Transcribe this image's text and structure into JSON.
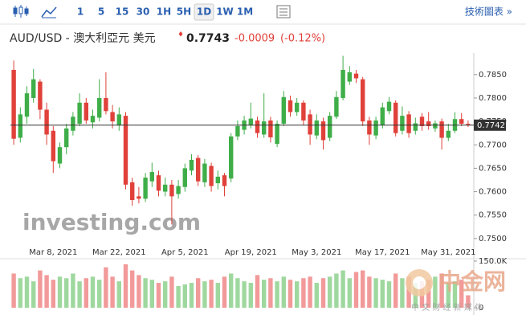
{
  "toolbar": {
    "timeframes": [
      "1",
      "5",
      "15",
      "30",
      "1H",
      "5H",
      "1D",
      "1W",
      "1M"
    ],
    "selected": "1D",
    "chart_link": "技術圖表 »"
  },
  "header": {
    "symbol": "AUD/USD - 澳大利亞元 美元",
    "marker": "♦",
    "price": 0.7743,
    "change": -0.0009,
    "change_pct": "(-0.12%)"
  },
  "watermarks": {
    "brand": "investing.com",
    "logo": "中金网",
    "logo_tagline": "中 文 财 经 新 媒 体"
  },
  "chart_data": [
    {
      "type": "candlestick",
      "categories": [
        null,
        null,
        null,
        null,
        null,
        null,
        "Mar 8, 2021",
        null,
        null,
        null,
        null,
        null,
        null,
        null,
        null,
        null,
        "Mar 22, 2021",
        null,
        null,
        null,
        null,
        null,
        null,
        null,
        null,
        null,
        "Apr 5, 2021",
        null,
        null,
        null,
        null,
        null,
        null,
        null,
        null,
        null,
        "Apr 19, 2021",
        null,
        null,
        null,
        null,
        null,
        null,
        null,
        null,
        null,
        "May 3, 2021",
        null,
        null,
        null,
        null,
        null,
        null,
        null,
        null,
        null,
        "May 17, 2021",
        null,
        null,
        null,
        null,
        null,
        null,
        null,
        null,
        null,
        "May 31, 2021",
        null,
        null,
        null
      ],
      "open": [
        0.786,
        0.7715,
        0.776,
        0.78,
        0.7835,
        0.7775,
        0.773,
        0.766,
        0.7695,
        0.773,
        0.7745,
        0.779,
        0.7748,
        0.7758,
        0.78,
        0.777,
        0.7742,
        0.7762,
        0.762,
        0.759,
        0.7585,
        0.7622,
        0.7635,
        0.76,
        0.7615,
        0.7595,
        0.761,
        0.7645,
        0.7672,
        0.762,
        0.7655,
        0.7618,
        0.7635,
        0.7628,
        0.7718,
        0.7732,
        0.7742,
        0.7752,
        0.7722,
        0.7752,
        0.7702,
        0.7745,
        0.7795,
        0.777,
        0.779,
        0.7765,
        0.772,
        0.775,
        0.7715,
        0.776,
        0.78,
        0.7835,
        0.7852,
        0.784,
        0.7752,
        0.772,
        0.7742,
        0.7772,
        0.779,
        0.773,
        0.7765,
        0.773,
        0.776,
        0.775,
        0.7735,
        0.775,
        0.7715,
        0.773,
        0.7755,
        0.7745
      ],
      "high": [
        0.788,
        0.778,
        0.7825,
        0.7862,
        0.784,
        0.779,
        0.774,
        0.7705,
        0.7745,
        0.777,
        0.781,
        0.78,
        0.7775,
        0.784,
        0.7855,
        0.7785,
        0.778,
        0.777,
        0.763,
        0.761,
        0.764,
        0.7662,
        0.7645,
        0.763,
        0.7625,
        0.7625,
        0.766,
        0.768,
        0.7678,
        0.767,
        0.7662,
        0.7645,
        0.764,
        0.7725,
        0.7752,
        0.7762,
        0.779,
        0.776,
        0.781,
        0.776,
        0.7752,
        0.7815,
        0.7805,
        0.78,
        0.7795,
        0.7775,
        0.7765,
        0.7758,
        0.777,
        0.7815,
        0.789,
        0.7868,
        0.786,
        0.7845,
        0.776,
        0.776,
        0.779,
        0.7802,
        0.7795,
        0.7782,
        0.7772,
        0.7758,
        0.7768,
        0.777,
        0.7752,
        0.7756,
        0.7745,
        0.777,
        0.7768,
        0.7752
      ],
      "low": [
        0.77,
        0.7705,
        0.7745,
        0.779,
        0.7755,
        0.77,
        0.764,
        0.765,
        0.768,
        0.772,
        0.774,
        0.7745,
        0.7735,
        0.775,
        0.7765,
        0.7735,
        0.773,
        0.7605,
        0.757,
        0.7575,
        0.7578,
        0.761,
        0.759,
        0.759,
        0.753,
        0.7585,
        0.76,
        0.7635,
        0.7612,
        0.761,
        0.76,
        0.7605,
        0.759,
        0.762,
        0.771,
        0.7722,
        0.7735,
        0.7715,
        0.7715,
        0.7705,
        0.7695,
        0.774,
        0.776,
        0.7762,
        0.7742,
        0.77,
        0.7712,
        0.769,
        0.7708,
        0.7755,
        0.7795,
        0.7828,
        0.7832,
        0.774,
        0.77,
        0.7712,
        0.7735,
        0.7765,
        0.7718,
        0.7722,
        0.7715,
        0.7722,
        0.773,
        0.7732,
        0.7728,
        0.769,
        0.7708,
        0.7725,
        0.774,
        0.7738
      ],
      "close": [
        0.7713,
        0.7765,
        0.781,
        0.784,
        0.7775,
        0.7722,
        0.7665,
        0.7695,
        0.7735,
        0.776,
        0.779,
        0.7752,
        0.7762,
        0.78,
        0.7772,
        0.775,
        0.7765,
        0.7615,
        0.7582,
        0.7585,
        0.763,
        0.7642,
        0.7602,
        0.7615,
        0.759,
        0.7612,
        0.765,
        0.7668,
        0.7622,
        0.766,
        0.7612,
        0.7632,
        0.7612,
        0.7718,
        0.774,
        0.7752,
        0.7756,
        0.7725,
        0.775,
        0.7716,
        0.7745,
        0.7802,
        0.777,
        0.779,
        0.7752,
        0.7722,
        0.7752,
        0.771,
        0.7762,
        0.7802,
        0.786,
        0.7855,
        0.7842,
        0.775,
        0.7722,
        0.7752,
        0.778,
        0.7792,
        0.7725,
        0.7762,
        0.7725,
        0.7746,
        0.774,
        0.774,
        0.7746,
        0.7715,
        0.773,
        0.7755,
        0.7745,
        0.7743
      ],
      "up_color": "#3fae49",
      "down_color": "#e0413a",
      "ylim": [
        0.7486,
        0.7896
      ],
      "yticks": [
        {
          "value": 0.75,
          "label": "0.7500"
        },
        {
          "value": 0.755,
          "label": "0.7550"
        },
        {
          "value": 0.76,
          "label": "0.7600"
        },
        {
          "value": 0.765,
          "label": "0.7650"
        },
        {
          "value": 0.77,
          "label": "0.7700"
        },
        {
          "value": 0.775,
          "label": "0.7750"
        },
        {
          "value": 0.78,
          "label": "0.7800"
        },
        {
          "value": 0.785,
          "label": "0.7850"
        }
      ],
      "price_line": 0.7742
    },
    {
      "type": "bar",
      "values": [
        110000,
        95000,
        100000,
        85000,
        120000,
        105000,
        90000,
        100000,
        95000,
        110000,
        85000,
        95000,
        100000,
        90000,
        130000,
        100000,
        85000,
        140000,
        120000,
        105000,
        95000,
        90000,
        80000,
        85000,
        100000,
        70000,
        75000,
        80000,
        95000,
        85000,
        90000,
        80000,
        100000,
        110000,
        95000,
        85000,
        80000,
        105000,
        90000,
        95000,
        85000,
        100000,
        90000,
        85000,
        95000,
        100000,
        80000,
        95000,
        100000,
        110000,
        120000,
        95000,
        115000,
        120000,
        100000,
        95000,
        90000,
        85000,
        110000,
        95000,
        100000,
        80000,
        85000,
        90000,
        100000,
        110000,
        80000,
        85000,
        90000,
        40000
      ],
      "up_color": "#9fd89f",
      "down_color": "#f29a9a",
      "ylim": [
        0,
        168000
      ],
      "yticks": [
        0,
        {
          "value": 150000,
          "label": "150.0K"
        }
      ]
    }
  ]
}
